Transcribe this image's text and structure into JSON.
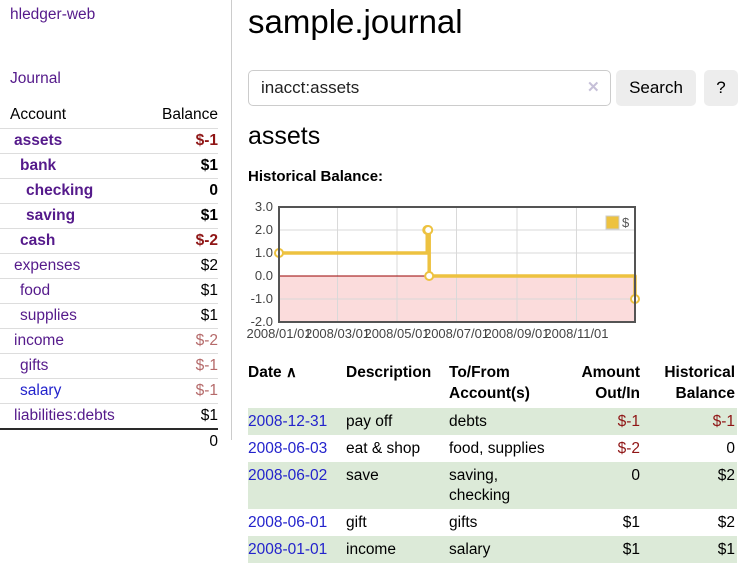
{
  "app": {
    "brand": "hledger-web",
    "nav": {
      "journal": "Journal"
    }
  },
  "icons": {
    "clear": "✕",
    "sort_asc": "∧"
  },
  "colors": {
    "link_purple": "#551a8b",
    "link_blue": "#2323cc",
    "negative_strong": "#8f1515",
    "negative_soft": "#b56a6a",
    "row_stripe_green": "#dcead8",
    "chart_line_gold": "#edc240",
    "chart_negative_fill": "#fbdcdc",
    "chart_zero_line": "#990000"
  },
  "sidebar": {
    "header": {
      "account": "Account",
      "balance": "Balance"
    },
    "rows": [
      {
        "account": "assets",
        "balance": "$-1"
      },
      {
        "account": "bank",
        "balance": "$1"
      },
      {
        "account": "checking",
        "balance": "0"
      },
      {
        "account": "saving",
        "balance": "$1"
      },
      {
        "account": "cash",
        "balance": "$-2"
      },
      {
        "account": "expenses",
        "balance": "$2"
      },
      {
        "account": "food",
        "balance": "$1"
      },
      {
        "account": "supplies",
        "balance": "$1"
      },
      {
        "account": "income",
        "balance": "$-2"
      },
      {
        "account": "gifts",
        "balance": "$-1"
      },
      {
        "account": "salary",
        "balance": "$-1"
      },
      {
        "account": "liabilities:debts",
        "balance": "$1"
      }
    ],
    "total": "0"
  },
  "main": {
    "title": "sample.journal",
    "search": {
      "value": "inacct:assets",
      "button_label": "Search",
      "help_label": "?"
    },
    "section_title": "assets",
    "chart_label": "Historical Balance:"
  },
  "chart_data": {
    "type": "line",
    "step": true,
    "title": "Historical Balance",
    "legend": "$",
    "legend_position": "top-right",
    "grid": true,
    "xlim": [
      "2008-01-01",
      "2008-12-31"
    ],
    "ylim": [
      -2,
      3
    ],
    "yticks": [
      3.0,
      2.0,
      1.0,
      0.0,
      -1.0,
      -2.0
    ],
    "xticks": [
      "2008/01/01",
      "2008/03/01",
      "2008/05/01",
      "2008/07/01",
      "2008/09/01",
      "2008/11/01"
    ],
    "series": [
      {
        "name": "$",
        "color": "#edc240",
        "points": [
          [
            "2008-01-01",
            1
          ],
          [
            "2008-06-01",
            2
          ],
          [
            "2008-06-02",
            2
          ],
          [
            "2008-06-03",
            0
          ],
          [
            "2008-12-31",
            -1
          ]
        ]
      }
    ],
    "negative_fill": "#fbdcdc",
    "zero_line_color": "#990000"
  },
  "register": {
    "headers": [
      {
        "l1": "Date",
        "l2": ""
      },
      {
        "l1": "Description",
        "l2": ""
      },
      {
        "l1": "To/From",
        "l2": "Account(s)"
      },
      {
        "l1": "Amount",
        "l2": "Out/In"
      },
      {
        "l1": "Historical",
        "l2": "Balance"
      }
    ],
    "rows": [
      {
        "date": "2008-12-31",
        "description": "pay off",
        "accounts": "debts",
        "amount": "$-1",
        "balance": "$-1"
      },
      {
        "date": "2008-06-03",
        "description": "eat & shop",
        "accounts": "food, supplies",
        "amount": "$-2",
        "balance": "0"
      },
      {
        "date": "2008-06-02",
        "description": "save",
        "accounts": "saving, checking",
        "amount": "0",
        "balance": "$2"
      },
      {
        "date": "2008-06-01",
        "description": "gift",
        "accounts": "gifts",
        "amount": "$1",
        "balance": "$2"
      },
      {
        "date": "2008-01-01",
        "description": "income",
        "accounts": "salary",
        "amount": "$1",
        "balance": "$1"
      }
    ]
  }
}
